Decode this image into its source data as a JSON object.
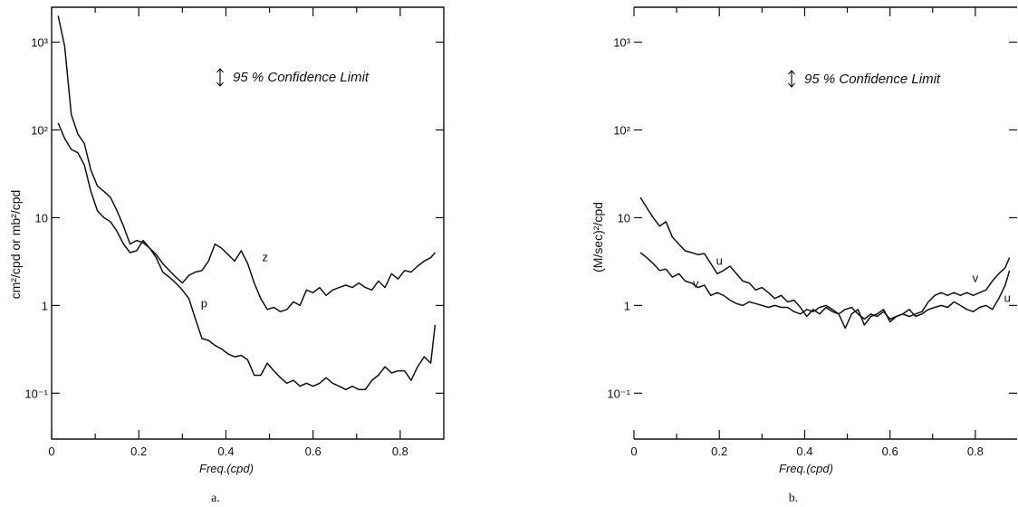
{
  "chart_data": [
    {
      "panel_label": "a.",
      "type": "line",
      "xlabel": "Freq.(cpd)",
      "ylabel": "cm²/cpd or mb²/cpd",
      "xlim": [
        0,
        0.9
      ],
      "ylim": [
        0.03,
        2500
      ],
      "yscale": "log",
      "x_ticks": [
        "0",
        "0.2",
        "0.4",
        "0.6",
        "0.8"
      ],
      "y_ticks": [
        {
          "value": 1000,
          "label": "10³"
        },
        {
          "value": 100,
          "label": "10²"
        },
        {
          "value": 10,
          "label": "10"
        },
        {
          "value": 1,
          "label": "1"
        },
        {
          "value": 0.1,
          "label": "10⁻¹"
        }
      ],
      "annotation": "95 % Confidence Limit",
      "grid": false,
      "series": [
        {
          "name": "z",
          "x": [
            0.015,
            0.03,
            0.045,
            0.06,
            0.075,
            0.09,
            0.105,
            0.12,
            0.135,
            0.15,
            0.165,
            0.18,
            0.195,
            0.21,
            0.225,
            0.24,
            0.255,
            0.27,
            0.285,
            0.3,
            0.315,
            0.33,
            0.345,
            0.36,
            0.375,
            0.39,
            0.405,
            0.42,
            0.435,
            0.45,
            0.465,
            0.48,
            0.495,
            0.51,
            0.525,
            0.54,
            0.555,
            0.57,
            0.585,
            0.6,
            0.615,
            0.63,
            0.645,
            0.66,
            0.675,
            0.69,
            0.705,
            0.72,
            0.735,
            0.75,
            0.765,
            0.78,
            0.795,
            0.81,
            0.825,
            0.84,
            0.855,
            0.87,
            0.88
          ],
          "values": [
            2000,
            900,
            150,
            90,
            70,
            35,
            23,
            20,
            17,
            12,
            8,
            5,
            5.5,
            5.2,
            4.5,
            3.8,
            3,
            2.5,
            2.1,
            1.8,
            2.2,
            2.4,
            2.5,
            3.2,
            5,
            4.5,
            3.8,
            3.2,
            4.2,
            3,
            1.8,
            1.2,
            0.9,
            0.95,
            0.85,
            0.9,
            1.1,
            1,
            1.5,
            1.4,
            1.6,
            1.3,
            1.5,
            1.6,
            1.7,
            1.6,
            1.8,
            1.6,
            1.5,
            1.9,
            1.6,
            2.3,
            2,
            2.5,
            2.4,
            2.8,
            3.2,
            3.5,
            4
          ]
        },
        {
          "name": "p",
          "x": [
            0.015,
            0.03,
            0.045,
            0.06,
            0.075,
            0.09,
            0.105,
            0.12,
            0.135,
            0.15,
            0.165,
            0.18,
            0.195,
            0.21,
            0.225,
            0.24,
            0.255,
            0.27,
            0.285,
            0.3,
            0.315,
            0.33,
            0.345,
            0.36,
            0.375,
            0.39,
            0.405,
            0.42,
            0.435,
            0.45,
            0.465,
            0.48,
            0.495,
            0.51,
            0.525,
            0.54,
            0.555,
            0.57,
            0.585,
            0.6,
            0.615,
            0.63,
            0.645,
            0.66,
            0.675,
            0.69,
            0.705,
            0.72,
            0.735,
            0.75,
            0.765,
            0.78,
            0.795,
            0.81,
            0.825,
            0.84,
            0.855,
            0.87,
            0.88
          ],
          "values": [
            120,
            80,
            60,
            55,
            40,
            20,
            12,
            10,
            9,
            7,
            5,
            4,
            4.2,
            5.5,
            4.5,
            3.5,
            2.4,
            2.1,
            1.8,
            1.5,
            1.2,
            0.7,
            0.42,
            0.4,
            0.35,
            0.32,
            0.28,
            0.26,
            0.27,
            0.24,
            0.16,
            0.16,
            0.22,
            0.18,
            0.15,
            0.13,
            0.14,
            0.12,
            0.13,
            0.12,
            0.13,
            0.15,
            0.13,
            0.12,
            0.11,
            0.12,
            0.11,
            0.11,
            0.14,
            0.16,
            0.2,
            0.17,
            0.18,
            0.18,
            0.14,
            0.2,
            0.26,
            0.22,
            0.6
          ]
        }
      ]
    },
    {
      "panel_label": "b.",
      "type": "line",
      "xlabel": "Freq.(cpd)",
      "ylabel": "(M/sec)²/cpd",
      "xlim": [
        0,
        0.9
      ],
      "ylim": [
        0.03,
        2500
      ],
      "yscale": "log",
      "x_ticks": [
        "0",
        "0.2",
        "0.4",
        "0.6",
        "0.8"
      ],
      "y_ticks": [
        {
          "value": 1000,
          "label": "10³"
        },
        {
          "value": 100,
          "label": "10²"
        },
        {
          "value": 10,
          "label": "10"
        },
        {
          "value": 1,
          "label": "1"
        },
        {
          "value": 0.1,
          "label": "10⁻¹"
        }
      ],
      "annotation": "95 % Confidence Limit",
      "grid": false,
      "series": [
        {
          "name": "u",
          "x": [
            0.015,
            0.03,
            0.045,
            0.06,
            0.075,
            0.09,
            0.105,
            0.12,
            0.135,
            0.15,
            0.165,
            0.18,
            0.195,
            0.21,
            0.225,
            0.24,
            0.255,
            0.27,
            0.285,
            0.3,
            0.315,
            0.33,
            0.345,
            0.36,
            0.375,
            0.39,
            0.405,
            0.42,
            0.435,
            0.45,
            0.465,
            0.48,
            0.495,
            0.51,
            0.525,
            0.54,
            0.555,
            0.57,
            0.585,
            0.6,
            0.615,
            0.63,
            0.645,
            0.66,
            0.675,
            0.69,
            0.705,
            0.72,
            0.735,
            0.75,
            0.765,
            0.78,
            0.795,
            0.81,
            0.825,
            0.84,
            0.855,
            0.87,
            0.88
          ],
          "values": [
            17,
            13,
            10,
            8,
            9,
            6,
            5,
            4.2,
            4,
            3.8,
            3.9,
            3,
            2.3,
            2.5,
            2.8,
            2.3,
            1.9,
            1.8,
            1.5,
            1.6,
            1.4,
            1.2,
            1.3,
            1.1,
            1.15,
            0.95,
            0.75,
            0.9,
            0.8,
            0.95,
            0.85,
            0.8,
            0.55,
            0.8,
            0.9,
            0.6,
            0.75,
            0.8,
            0.9,
            0.65,
            0.75,
            0.8,
            0.9,
            0.75,
            0.8,
            0.9,
            0.95,
            1,
            0.95,
            1.1,
            1,
            0.9,
            0.85,
            0.95,
            1,
            0.9,
            1.2,
            1.7,
            2.5
          ]
        },
        {
          "name": "v",
          "x": [
            0.015,
            0.03,
            0.045,
            0.06,
            0.075,
            0.09,
            0.105,
            0.12,
            0.135,
            0.15,
            0.165,
            0.18,
            0.195,
            0.21,
            0.225,
            0.24,
            0.255,
            0.27,
            0.285,
            0.3,
            0.315,
            0.33,
            0.345,
            0.36,
            0.375,
            0.39,
            0.405,
            0.42,
            0.435,
            0.45,
            0.465,
            0.48,
            0.495,
            0.51,
            0.525,
            0.54,
            0.555,
            0.57,
            0.585,
            0.6,
            0.615,
            0.63,
            0.645,
            0.66,
            0.675,
            0.69,
            0.705,
            0.72,
            0.735,
            0.75,
            0.765,
            0.78,
            0.795,
            0.81,
            0.825,
            0.84,
            0.855,
            0.87,
            0.88
          ],
          "values": [
            4,
            3.5,
            3,
            2.5,
            2.6,
            2.1,
            2.3,
            1.9,
            1.8,
            1.6,
            1.7,
            1.3,
            1.4,
            1.3,
            1.15,
            1.05,
            1,
            1.1,
            1.05,
            1,
            0.95,
            1,
            0.95,
            0.95,
            0.85,
            0.8,
            0.9,
            0.85,
            0.95,
            1,
            0.9,
            0.8,
            0.9,
            0.95,
            0.8,
            0.7,
            0.8,
            0.75,
            0.85,
            0.7,
            0.75,
            0.8,
            0.75,
            0.8,
            0.85,
            1.1,
            1.3,
            1.4,
            1.3,
            1.4,
            1.3,
            1.4,
            1.3,
            1.4,
            1.5,
            1.9,
            2.3,
            2.7,
            3.5
          ]
        }
      ]
    }
  ]
}
